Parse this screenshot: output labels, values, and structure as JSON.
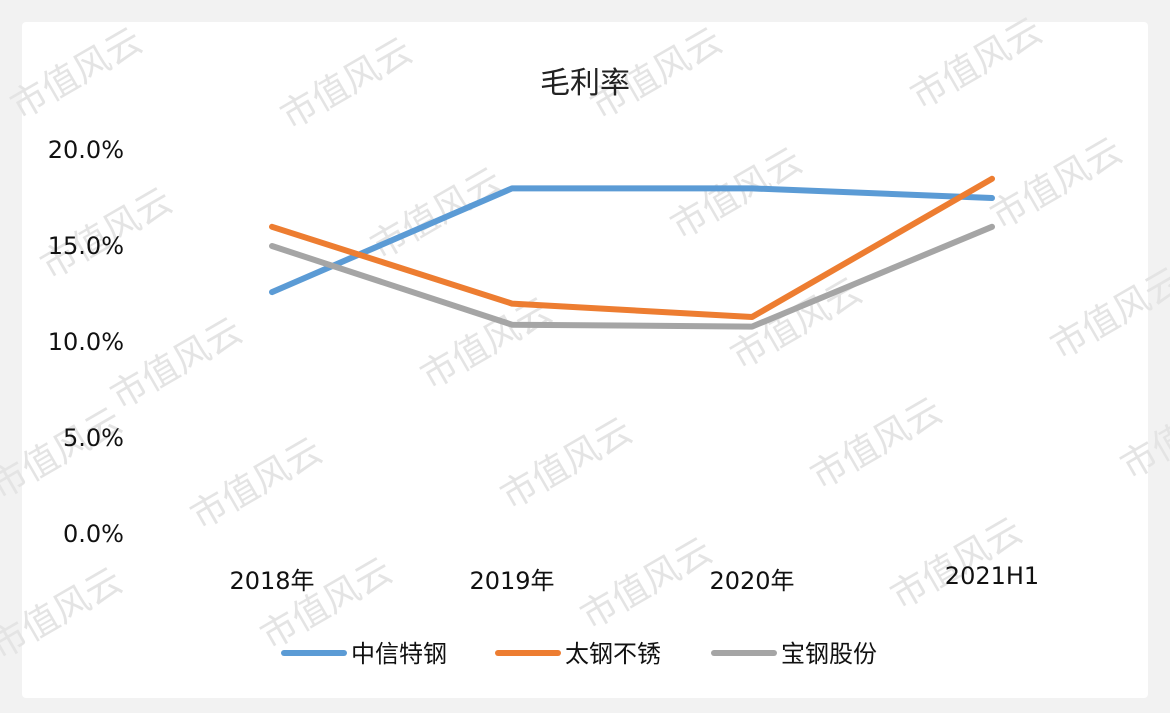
{
  "watermark_text": "市值风云",
  "chart_data": {
    "type": "line",
    "title": "毛利率",
    "xlabel": "",
    "ylabel": "",
    "categories": [
      "2018年",
      "2019年",
      "2020年",
      "2021H1"
    ],
    "ylim": [
      0,
      20
    ],
    "yticks": [
      "20.0%",
      "15.0%",
      "10.0%",
      "5.0%",
      "0.0%"
    ],
    "yticks_values": [
      20,
      15,
      10,
      5,
      0
    ],
    "grid": false,
    "legend_position": "bottom",
    "series": [
      {
        "name": "中信特钢",
        "color": "#5b9bd5",
        "values": [
          12.6,
          18.0,
          18.0,
          17.5
        ]
      },
      {
        "name": "太钢不锈",
        "color": "#ed7d31",
        "values": [
          16.0,
          12.0,
          11.3,
          18.5
        ]
      },
      {
        "name": "宝钢股份",
        "color": "#a5a5a5",
        "values": [
          15.0,
          10.9,
          10.8,
          16.0
        ]
      }
    ]
  }
}
